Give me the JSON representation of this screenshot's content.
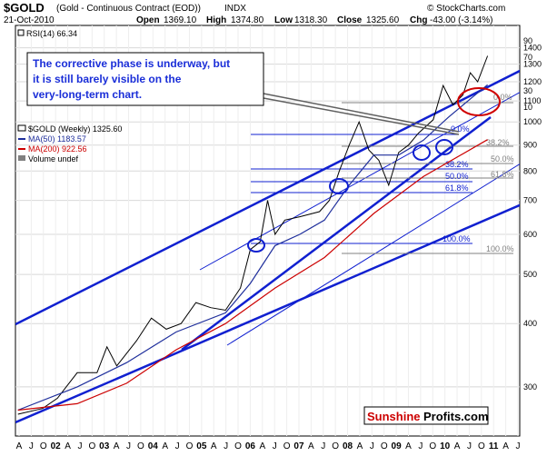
{
  "header": {
    "symbol": "$GOLD",
    "name": "(Gold - Continuous Contract (EOD))",
    "exchange": "INDX",
    "date": "21-Oct-2010",
    "open_label": "Open",
    "open_value": "1369.10",
    "high_label": "High",
    "high_value": "1374.80",
    "low_label": "Low",
    "low_value": "1318.30",
    "close_label": "Close",
    "close_value": "1325.60",
    "chg_label": "Chg",
    "chg_value": "-43.00 (-3.14%)",
    "copyright": "© StockCharts.com"
  },
  "rsi": {
    "label": "RSI(14) 66.34"
  },
  "legend": {
    "price": "$GOLD (Weekly) 1325.60",
    "ma50": "MA(50) 1183.57",
    "ma200": "MA(200) 922.56",
    "volume": "Volume undef"
  },
  "annotation": {
    "line1": "The corrective phase is underway, but",
    "line2": "it is still barely visible on the",
    "line3": "very-long-term chart."
  },
  "watermark": {
    "part1": "Sunshine",
    "part2": "Profits.com"
  },
  "colors": {
    "price": "#000000",
    "ma50": "#1f2f9c",
    "ma200": "#cc0000",
    "trend": "#1020d0",
    "fib": "#1020d0",
    "fib_gray": "#808080",
    "ellipse": "#d00000",
    "circle": "#1020d0"
  },
  "fib_levels": [
    {
      "label": "0.0%"
    },
    {
      "label": "38.2%"
    },
    {
      "label": "50.0%"
    },
    {
      "label": "61.8%"
    },
    {
      "label": "0.0%"
    },
    {
      "label": "38.2%"
    },
    {
      "label": "50.0%"
    },
    {
      "label": "61.8%"
    },
    {
      "label": "100.0%"
    },
    {
      "label": "100.0%"
    }
  ],
  "rsi_axis_labels": [
    "90",
    "70",
    "30",
    "10"
  ],
  "chart_data": {
    "type": "line",
    "scale": "log",
    "ylim": [
      240,
      1550
    ],
    "y_ticks": [
      300,
      400,
      500,
      600,
      700,
      800,
      900,
      1000,
      1100,
      1200,
      1300,
      1400
    ],
    "x_labels": [
      "A",
      "J",
      "O",
      "02",
      "A",
      "J",
      "O",
      "03",
      "A",
      "J",
      "O",
      "04",
      "A",
      "J",
      "O",
      "05",
      "A",
      "J",
      "O",
      "06",
      "A",
      "J",
      "O",
      "07",
      "A",
      "J",
      "O",
      "08",
      "A",
      "J",
      "O",
      "09",
      "A",
      "J",
      "O",
      "10",
      "A",
      "J",
      "O",
      "11",
      "A",
      "J"
    ],
    "series": [
      {
        "name": "$GOLD",
        "x": [
          2001.3,
          2001.8,
          2002.1,
          2002.5,
          2002.9,
          2003.1,
          2003.3,
          2003.7,
          2004.0,
          2004.3,
          2004.6,
          2004.9,
          2005.2,
          2005.5,
          2005.8,
          2006.0,
          2006.2,
          2006.35,
          2006.5,
          2006.7,
          2007.0,
          2007.4,
          2007.6,
          2007.8,
          2008.0,
          2008.2,
          2008.4,
          2008.6,
          2008.8,
          2009.0,
          2009.2,
          2009.4,
          2009.7,
          2009.9,
          2010.1,
          2010.3,
          2010.45,
          2010.6,
          2010.8
        ],
        "y": [
          265,
          272,
          285,
          320,
          320,
          360,
          330,
          370,
          410,
          390,
          400,
          440,
          430,
          425,
          470,
          560,
          580,
          700,
          600,
          640,
          650,
          665,
          700,
          800,
          900,
          1000,
          880,
          840,
          750,
          870,
          900,
          950,
          1010,
          1180,
          1080,
          1130,
          1250,
          1200,
          1350
        ]
      },
      {
        "name": "MA(50)",
        "x": [
          2001.3,
          2002.5,
          2003.5,
          2004.5,
          2005.5,
          2006.0,
          2006.5,
          2007.0,
          2007.5,
          2008.0,
          2008.5,
          2009.0,
          2009.5,
          2010.0,
          2010.5,
          2010.8
        ],
        "y": [
          270,
          300,
          335,
          385,
          420,
          480,
          570,
          600,
          640,
          750,
          860,
          860,
          920,
          1020,
          1120,
          1183.57
        ]
      },
      {
        "name": "MA(200)",
        "x": [
          2001.3,
          2002.5,
          2003.5,
          2004.5,
          2005.5,
          2006.5,
          2007.5,
          2008.5,
          2009.5,
          2010.8
        ],
        "y": [
          270,
          278,
          305,
          355,
          400,
          470,
          540,
          660,
          780,
          922.56
        ]
      }
    ]
  }
}
